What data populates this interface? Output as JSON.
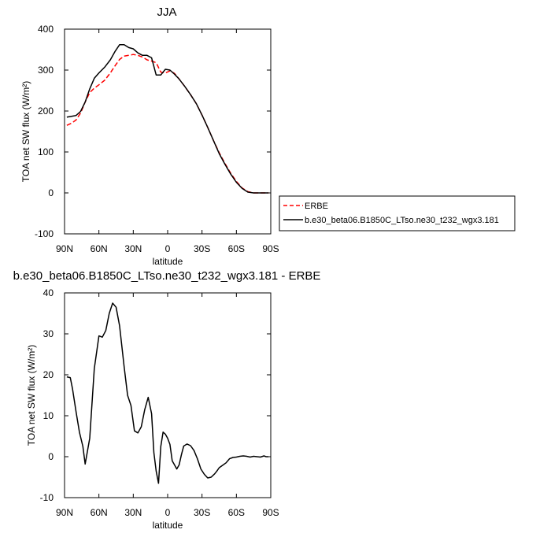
{
  "chart_data": [
    {
      "type": "line",
      "title": "JJA",
      "xlabel": "latitude",
      "ylabel": "TOA net SW flux (W/m²)",
      "xlim": [
        -90,
        90
      ],
      "ylim": [
        -100,
        400
      ],
      "x_tick_labels": [
        "90N",
        "60N",
        "30N",
        "0",
        "30S",
        "60S",
        "90S"
      ],
      "y_tick_labels": [
        "-100",
        "0",
        "100",
        "200",
        "300",
        "400"
      ],
      "legend": "right",
      "series": [
        {
          "name": "ERBE",
          "color": "#ff0000",
          "style": "dashed",
          "x": [
            -88,
            -84,
            -80,
            -76,
            -72,
            -68,
            -64,
            -60,
            -55,
            -50,
            -46,
            -42,
            -38,
            -34,
            -30,
            -26,
            -22,
            -18,
            -14,
            -10,
            -6,
            -2,
            2,
            6,
            10,
            15,
            20,
            25,
            30,
            35,
            40,
            45,
            50,
            55,
            60,
            65,
            70,
            75,
            80,
            85,
            88
          ],
          "y": [
            165,
            170,
            178,
            195,
            222,
            245,
            256,
            264,
            275,
            293,
            310,
            326,
            334,
            336,
            338,
            336,
            332,
            325,
            322,
            318,
            295,
            293,
            298,
            292,
            278,
            260,
            240,
            218,
            190,
            160,
            128,
            98,
            72,
            48,
            28,
            12,
            3,
            0,
            0,
            0,
            0
          ]
        },
        {
          "name": "b.e30_beta06.B1850C_LTso.ne30_t232_wgx3.181",
          "color": "#000000",
          "style": "solid",
          "x": [
            -88,
            -84,
            -80,
            -76,
            -72,
            -68,
            -64,
            -60,
            -55,
            -50,
            -46,
            -42,
            -38,
            -34,
            -30,
            -26,
            -22,
            -18,
            -14,
            -10,
            -6,
            -2,
            2,
            6,
            10,
            15,
            20,
            25,
            30,
            35,
            40,
            45,
            50,
            55,
            60,
            65,
            70,
            75,
            80,
            85,
            88
          ],
          "y": [
            185,
            187,
            189,
            199,
            222,
            254,
            280,
            293,
            307,
            325,
            345,
            362,
            362,
            355,
            352,
            342,
            336,
            336,
            330,
            288,
            288,
            302,
            300,
            290,
            278,
            260,
            240,
            218,
            190,
            160,
            128,
            96,
            70,
            46,
            26,
            11,
            2,
            0,
            0,
            0,
            0
          ]
        }
      ]
    },
    {
      "type": "line",
      "title": "b.e30_beta06.B1850C_LTso.ne30_t232_wgx3.181 - ERBE",
      "xlabel": "latitude",
      "ylabel": "TOA net SW flux (W/m²)",
      "xlim": [
        -90,
        90
      ],
      "ylim": [
        -10,
        40
      ],
      "x_tick_labels": [
        "90N",
        "60N",
        "30N",
        "0",
        "30S",
        "60S",
        "90S"
      ],
      "y_tick_labels": [
        "-10",
        "0",
        "10",
        "20",
        "30",
        "40"
      ],
      "series": [
        {
          "color": "#000000",
          "style": "solid",
          "x": [
            -88,
            -85,
            -83,
            -80,
            -77,
            -74,
            -72,
            -68,
            -64,
            -60,
            -57,
            -54,
            -51,
            -48,
            -45,
            -42,
            -40,
            -38,
            -35,
            -32,
            -29,
            -26,
            -23,
            -20,
            -17,
            -14,
            -12,
            -10,
            -8,
            -6,
            -4,
            -2,
            0,
            2,
            4,
            6,
            8,
            10,
            12,
            14,
            17,
            20,
            23,
            26,
            29,
            32,
            35,
            38,
            41,
            43,
            45,
            48,
            51,
            54,
            57,
            60,
            63,
            66,
            69,
            72,
            75,
            78,
            81,
            84,
            86,
            88
          ],
          "y": [
            19.5,
            19.3,
            16.5,
            11,
            6,
            2.5,
            -1.8,
            4.5,
            21.5,
            29.5,
            29.2,
            30.8,
            35,
            37.5,
            36.5,
            32,
            27,
            22,
            15,
            12.5,
            6.3,
            5.8,
            7.3,
            11.5,
            14.5,
            10.5,
            1,
            -3.5,
            -6.5,
            2.5,
            6,
            5.5,
            4.5,
            3,
            -1,
            -2,
            -3,
            -2,
            0.5,
            2.6,
            3.1,
            2.7,
            1.5,
            -0.5,
            -3,
            -4.3,
            -5.2,
            -5,
            -4.2,
            -3.5,
            -2.7,
            -2.1,
            -1.5,
            -0.5,
            -0.2,
            -0.1,
            0.1,
            0.2,
            0.1,
            -0.1,
            0.1,
            0,
            -0.1,
            0.2,
            0,
            0
          ]
        }
      ]
    }
  ]
}
